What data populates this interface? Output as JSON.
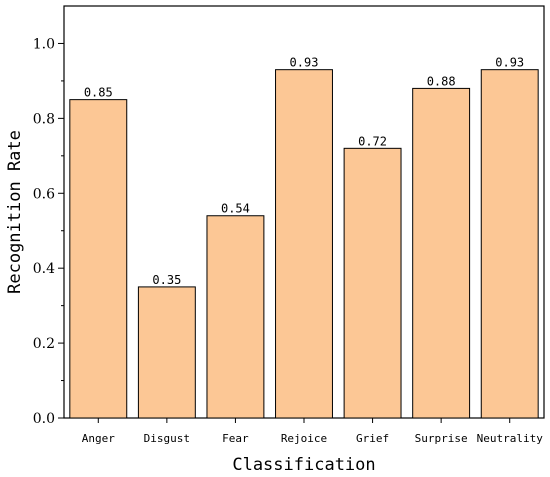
{
  "chart_data": {
    "type": "bar",
    "categories": [
      "Anger",
      "Disgust",
      "Fear",
      "Rejoice",
      "Grief",
      "Surprise",
      "Neutrality"
    ],
    "values": [
      0.85,
      0.35,
      0.54,
      0.93,
      0.72,
      0.88,
      0.93
    ],
    "data_labels": [
      "0.85",
      "0.35",
      "0.54",
      "0.93",
      "0.72",
      "0.88",
      "0.93"
    ],
    "xlabel": "Classification",
    "ylabel": "Recognition Rate",
    "ylim": [
      0,
      1.1
    ],
    "yticks": [
      0.0,
      0.2,
      0.4,
      0.6,
      0.8,
      1.0
    ],
    "ytick_labels": [
      "0.0",
      "0.2",
      "0.4",
      "0.6",
      "0.8",
      "1.0"
    ],
    "grid": false,
    "bar_color": "#fcc795",
    "bar_edge_color": "#000000"
  }
}
